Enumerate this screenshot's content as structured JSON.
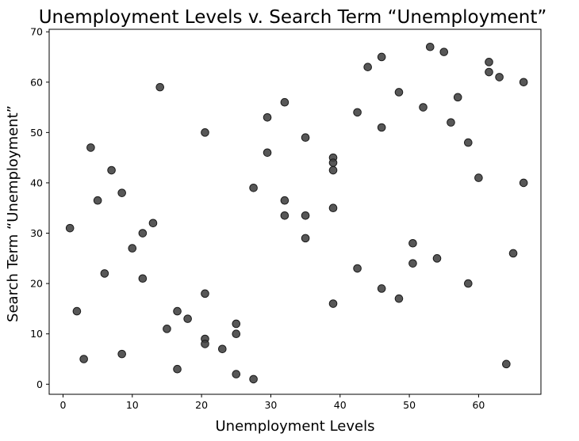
{
  "chart_data": {
    "type": "scatter",
    "title": "Unemployment Levels v. Search Term “Unemployment”",
    "xlabel": "Unemployment Levels",
    "ylabel": "Search Term “Unemployment”",
    "xlim": [
      -2,
      69
    ],
    "ylim": [
      -2,
      70.5
    ],
    "xticks": [
      0,
      10,
      20,
      30,
      40,
      50,
      60
    ],
    "yticks": [
      0,
      10,
      20,
      30,
      40,
      50,
      60,
      70
    ],
    "grid": false,
    "marker_color": "#404040",
    "points": [
      {
        "x": 1,
        "y": 31
      },
      {
        "x": 2,
        "y": 14.5
      },
      {
        "x": 3,
        "y": 5
      },
      {
        "x": 4,
        "y": 47
      },
      {
        "x": 5,
        "y": 36.5
      },
      {
        "x": 6,
        "y": 22
      },
      {
        "x": 7,
        "y": 42.5
      },
      {
        "x": 8.5,
        "y": 38
      },
      {
        "x": 8.5,
        "y": 6
      },
      {
        "x": 10,
        "y": 27
      },
      {
        "x": 11.5,
        "y": 30
      },
      {
        "x": 11.5,
        "y": 21
      },
      {
        "x": 13,
        "y": 32
      },
      {
        "x": 14,
        "y": 59
      },
      {
        "x": 15,
        "y": 11
      },
      {
        "x": 16.5,
        "y": 14.5
      },
      {
        "x": 16.5,
        "y": 3
      },
      {
        "x": 18,
        "y": 13
      },
      {
        "x": 20.5,
        "y": 50
      },
      {
        "x": 20.5,
        "y": 18
      },
      {
        "x": 20.5,
        "y": 9
      },
      {
        "x": 20.5,
        "y": 8
      },
      {
        "x": 23,
        "y": 7
      },
      {
        "x": 25,
        "y": 12
      },
      {
        "x": 25,
        "y": 10
      },
      {
        "x": 25,
        "y": 2
      },
      {
        "x": 27.5,
        "y": 39
      },
      {
        "x": 27.5,
        "y": 1
      },
      {
        "x": 29.5,
        "y": 53
      },
      {
        "x": 29.5,
        "y": 46
      },
      {
        "x": 32,
        "y": 56
      },
      {
        "x": 32,
        "y": 36.5
      },
      {
        "x": 32,
        "y": 33.5
      },
      {
        "x": 35,
        "y": 49
      },
      {
        "x": 35,
        "y": 33.5
      },
      {
        "x": 35,
        "y": 29
      },
      {
        "x": 39,
        "y": 45
      },
      {
        "x": 39,
        "y": 44
      },
      {
        "x": 39,
        "y": 42.5
      },
      {
        "x": 39,
        "y": 35
      },
      {
        "x": 39,
        "y": 16
      },
      {
        "x": 42.5,
        "y": 54
      },
      {
        "x": 42.5,
        "y": 23
      },
      {
        "x": 44,
        "y": 63
      },
      {
        "x": 46,
        "y": 65
      },
      {
        "x": 46,
        "y": 51
      },
      {
        "x": 46,
        "y": 19
      },
      {
        "x": 48.5,
        "y": 58
      },
      {
        "x": 48.5,
        "y": 17
      },
      {
        "x": 50.5,
        "y": 28
      },
      {
        "x": 50.5,
        "y": 24
      },
      {
        "x": 52,
        "y": 55
      },
      {
        "x": 53,
        "y": 67
      },
      {
        "x": 54,
        "y": 25
      },
      {
        "x": 55,
        "y": 66
      },
      {
        "x": 56,
        "y": 52
      },
      {
        "x": 57,
        "y": 57
      },
      {
        "x": 58.5,
        "y": 48
      },
      {
        "x": 58.5,
        "y": 20
      },
      {
        "x": 60,
        "y": 41
      },
      {
        "x": 61.5,
        "y": 64
      },
      {
        "x": 61.5,
        "y": 62
      },
      {
        "x": 63,
        "y": 61
      },
      {
        "x": 64,
        "y": 4
      },
      {
        "x": 65,
        "y": 26
      },
      {
        "x": 66.5,
        "y": 60
      },
      {
        "x": 66.5,
        "y": 40
      }
    ]
  }
}
